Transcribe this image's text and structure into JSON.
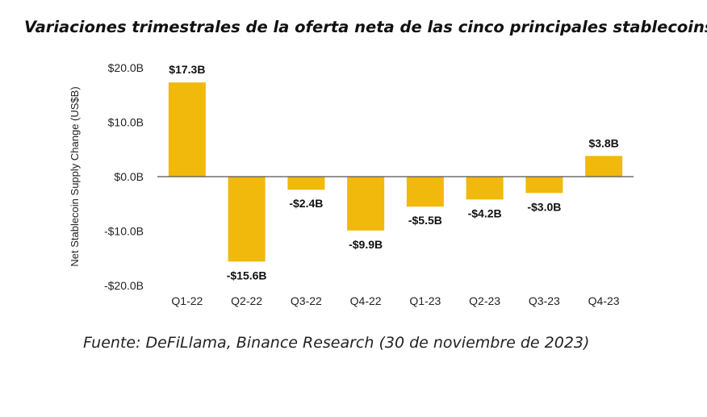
{
  "title": "Variaciones trimestrales de la oferta neta de las cinco principales stablecoins",
  "source": "Fuente: DeFiLlama, Binance Research (30 de noviembre de 2023)",
  "colors": {
    "bar": "#F0B90B",
    "axis": "#555555",
    "text": "#222222"
  },
  "chart_data": {
    "type": "bar",
    "title": "Variaciones trimestrales de la oferta neta de las cinco principales stablecoins",
    "xlabel": "",
    "ylabel": "Net Stablecoin Supply Change (US$B)",
    "categories": [
      "Q1-22",
      "Q2-22",
      "Q3-22",
      "Q4-22",
      "Q1-23",
      "Q2-23",
      "Q3-23",
      "Q4-23"
    ],
    "values": [
      17.3,
      -15.6,
      -2.4,
      -9.9,
      -5.5,
      -4.2,
      -3.0,
      3.8
    ],
    "value_labels": [
      "$17.3B",
      "-$15.6B",
      "-$2.4B",
      "-$9.9B",
      "-$5.5B",
      "-$4.2B",
      "-$3.0B",
      "$3.8B"
    ],
    "yticks": [
      20,
      10,
      0,
      -10,
      -20
    ],
    "ytick_labels": [
      "$20.0B",
      "$10.0B",
      "$0.0B",
      "-$10.0B",
      "-$20.0B"
    ],
    "ylim": [
      -20,
      20
    ],
    "grid": false,
    "legend": "none"
  }
}
